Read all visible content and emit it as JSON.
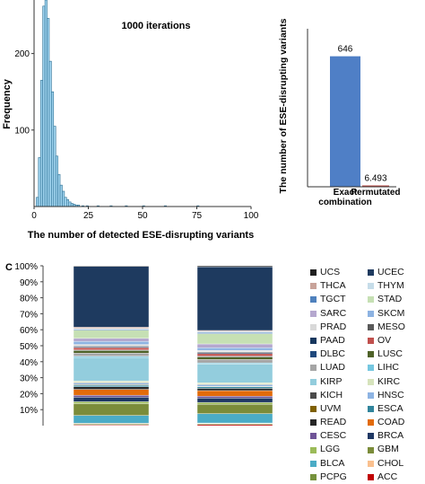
{
  "chart_data": [
    {
      "type": "bar",
      "subtype": "histogram",
      "title": "1000 iterations",
      "xlabel": "The number of detected  ESE-disrupting variants",
      "ylabel": "Frequency",
      "x_ticks": [
        0,
        25,
        50,
        75,
        100
      ],
      "y_ticks": [
        100,
        200
      ],
      "xlim": [
        0,
        100
      ],
      "ylim": [
        0,
        270
      ],
      "bar_color": "#9fd3ee",
      "bar_edge_color": "#2b6f93",
      "bin_width": 1,
      "bin_starts": [
        1,
        2,
        3,
        4,
        5,
        6,
        7,
        8,
        9,
        10,
        11,
        12,
        13,
        14,
        15,
        16,
        17,
        18,
        19,
        20,
        22,
        24,
        29,
        35,
        42,
        50,
        60,
        75
      ],
      "values": [
        12,
        64,
        165,
        262,
        270,
        246,
        190,
        150,
        105,
        66,
        42,
        28,
        20,
        12,
        9,
        6,
        4,
        3,
        2,
        2,
        1,
        1,
        1,
        1,
        1,
        1,
        1,
        1
      ],
      "grid": false
    },
    {
      "type": "bar",
      "ylabel": "The number of ESE-disrupting variants",
      "categories": [
        "Exact combination",
        "Permutated"
      ],
      "values": [
        646,
        6.493
      ],
      "data_labels": [
        "646",
        "6.493"
      ],
      "colors": [
        "#4f7fc6",
        "#c0504d"
      ],
      "ylim": [
        0,
        720
      ],
      "grid": false
    },
    {
      "type": "bar",
      "subtype": "stacked-100%",
      "panel_label": "C",
      "y_ticks": [
        "10%",
        "20%",
        "30%",
        "40%",
        "50%",
        "60%",
        "70%",
        "80%",
        "90%",
        "100%"
      ],
      "ylim": [
        0,
        100
      ],
      "bars": 2,
      "series": [
        {
          "name": "UCS",
          "color": "#1f1f1f",
          "values": [
            0.3,
            0.5
          ]
        },
        {
          "name": "UCEC",
          "color": "#1e3a5f",
          "values": [
            31.0,
            34.0
          ]
        },
        {
          "name": "THCA",
          "color": "#c8a39a",
          "values": [
            0.6,
            0.5
          ]
        },
        {
          "name": "THYM",
          "color": "#c6dde9",
          "values": [
            0.5,
            0.6
          ]
        },
        {
          "name": "TGCT",
          "color": "#4f81bd",
          "values": [
            0.4,
            0.6
          ]
        },
        {
          "name": "STAD",
          "color": "#c6e0b4",
          "values": [
            4.2,
            5.5
          ]
        },
        {
          "name": "SARC",
          "color": "#b5a8cf",
          "values": [
            1.6,
            2.0
          ]
        },
        {
          "name": "SKCM",
          "color": "#8db3e2",
          "values": [
            1.5,
            1.4
          ]
        },
        {
          "name": "PRAD",
          "color": "#d9d9d9",
          "values": [
            0.8,
            0.8
          ]
        },
        {
          "name": "MESO",
          "color": "#595959",
          "values": [
            0.3,
            0.4
          ]
        },
        {
          "name": "PAAD",
          "color": "#17375e",
          "values": [
            0.5,
            0.6
          ]
        },
        {
          "name": "OV",
          "color": "#c0504d",
          "values": [
            1.2,
            1.3
          ]
        },
        {
          "name": "DLBC",
          "color": "#1f497d",
          "values": [
            0.3,
            0.4
          ]
        },
        {
          "name": "LUSC",
          "color": "#4f6228",
          "values": [
            1.3,
            1.4
          ]
        },
        {
          "name": "LUAD",
          "color": "#a5a5a5",
          "values": [
            1.6,
            1.8
          ]
        },
        {
          "name": "LIHC",
          "color": "#75c7e0",
          "values": [
            0.6,
            0.6
          ]
        },
        {
          "name": "KIRP",
          "color": "#93cddd",
          "values": [
            12.0,
            10.0
          ]
        },
        {
          "name": "KIRC",
          "color": "#d6e3bc",
          "values": [
            0.8,
            0.8
          ]
        },
        {
          "name": "KICH",
          "color": "#4a4a4a",
          "values": [
            0.3,
            0.3
          ]
        },
        {
          "name": "HNSC",
          "color": "#8eb4e3",
          "values": [
            0.8,
            0.8
          ]
        },
        {
          "name": "UVM",
          "color": "#7f6000",
          "values": [
            0.3,
            0.3
          ]
        },
        {
          "name": "ESCA",
          "color": "#31859c",
          "values": [
            0.8,
            0.8
          ]
        },
        {
          "name": "READ",
          "color": "#262626",
          "values": [
            1.3,
            1.2
          ]
        },
        {
          "name": "COAD",
          "color": "#e26b0a",
          "values": [
            3.0,
            3.0
          ]
        },
        {
          "name": "CESC",
          "color": "#6f5497",
          "values": [
            1.0,
            1.0
          ]
        },
        {
          "name": "BRCA",
          "color": "#1f3864",
          "values": [
            2.3,
            2.3
          ]
        },
        {
          "name": "LGG",
          "color": "#9bbb59",
          "values": [
            1.0,
            1.0
          ]
        },
        {
          "name": "GBM",
          "color": "#7b8c3a",
          "values": [
            6.0,
            5.0
          ]
        },
        {
          "name": "BLCA",
          "color": "#4bacc6",
          "values": [
            4.0,
            5.0
          ]
        },
        {
          "name": "CHOL",
          "color": "#fac08f",
          "values": [
            0.3,
            0.3
          ]
        },
        {
          "name": "PCPG",
          "color": "#76923c",
          "values": [
            0.5,
            0.5
          ]
        },
        {
          "name": "ACC",
          "color": "#c00000",
          "values": [
            0.4,
            0.6
          ]
        }
      ],
      "legend_position": "right",
      "grid": false
    }
  ]
}
